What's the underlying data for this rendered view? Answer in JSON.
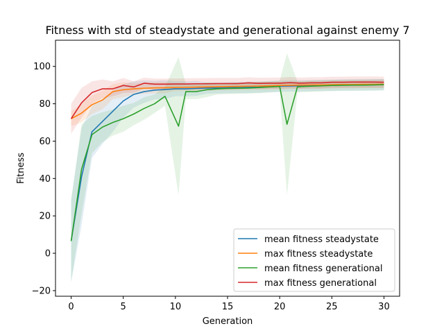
{
  "chart_data": {
    "type": "line",
    "title": "Fitness with std of steadystate and generational against enemy 7",
    "xlabel": "Generation",
    "ylabel": "Fitness",
    "xlim": [
      -1.5,
      31.5
    ],
    "ylim": [
      -23,
      114
    ],
    "xticks": [
      0,
      5,
      10,
      15,
      20,
      25,
      30
    ],
    "yticks": [
      -20,
      0,
      20,
      40,
      60,
      80,
      100
    ],
    "grid": false,
    "legend_position": "lower right",
    "series": [
      {
        "name": "mean fitness steadystate",
        "color": "#1f77b4",
        "x": [
          0,
          1,
          2,
          3,
          4,
          5,
          6,
          7,
          8,
          9,
          10,
          11,
          12,
          13,
          14,
          15,
          16,
          17,
          18,
          19,
          20,
          21,
          22,
          23,
          24,
          25,
          26,
          27,
          28,
          29,
          30
        ],
        "y": [
          6.5,
          41,
          65,
          70.5,
          76,
          81.5,
          85,
          86.5,
          87.3,
          87.6,
          88,
          88,
          88.2,
          88.4,
          88.5,
          88.6,
          88.7,
          88.8,
          88.9,
          89.2,
          89.4,
          89.5,
          89.6,
          89.7,
          89.8,
          89.9,
          90,
          90,
          90.1,
          90.1,
          90.2
        ],
        "std": [
          22,
          26,
          14,
          12,
          11,
          9,
          7,
          6,
          5,
          5,
          4,
          4,
          4,
          3,
          3,
          3,
          3,
          3,
          3,
          3,
          3,
          3,
          3,
          3,
          3,
          3,
          3,
          3,
          3,
          3,
          3
        ]
      },
      {
        "name": "max fitness steadystate",
        "color": "#ff7f0e",
        "x": [
          0,
          1,
          2,
          3,
          4,
          5,
          6,
          7,
          8,
          9,
          10,
          11,
          12,
          13,
          14,
          15,
          16,
          17,
          18,
          19,
          20,
          21,
          22,
          23,
          24,
          25,
          26,
          27,
          28,
          29,
          30
        ],
        "y": [
          72,
          75,
          79.5,
          82,
          86.5,
          87.5,
          88,
          88.3,
          88.5,
          88.6,
          88.7,
          88.8,
          88.9,
          89,
          89.1,
          89.2,
          89.3,
          89.4,
          89.5,
          89.6,
          89.8,
          89.9,
          90,
          90.1,
          90.1,
          90.2,
          90.3,
          90.3,
          90.4,
          90.4,
          90.5
        ],
        "std": [
          4,
          5,
          5,
          5,
          4,
          4,
          3,
          3,
          3,
          3,
          2,
          2,
          2,
          2,
          2,
          2,
          2,
          2,
          2,
          2,
          2,
          2,
          2,
          2,
          2,
          2,
          2,
          2,
          2,
          2,
          2
        ]
      },
      {
        "name": "mean fitness generational",
        "color": "#2ca02c",
        "x": [
          0,
          1,
          2,
          3,
          4,
          5,
          6,
          7,
          8,
          9,
          10.3,
          11,
          12,
          13,
          14,
          15,
          16,
          17,
          18,
          19,
          20,
          20.7,
          21.7,
          22,
          23,
          24,
          25,
          26,
          27,
          28,
          29,
          30
        ],
        "y": [
          6.5,
          45,
          63.5,
          67.5,
          70,
          72,
          74.5,
          77.5,
          80,
          84,
          68,
          86.5,
          86.5,
          87.5,
          88,
          88.2,
          88.3,
          88.4,
          88.7,
          89,
          89.3,
          69,
          89,
          89.2,
          89.4,
          89.6,
          89.8,
          89.9,
          90,
          90,
          90.1,
          90.2
        ],
        "std": [
          22,
          24,
          10,
          8,
          7,
          7,
          6,
          6,
          5,
          5,
          37,
          4,
          4,
          4,
          3,
          3,
          3,
          3,
          3,
          3,
          3,
          38,
          3,
          3,
          3,
          3,
          3,
          3,
          3,
          3,
          3,
          3
        ]
      },
      {
        "name": "max fitness generational",
        "color": "#d62728",
        "x": [
          0,
          1,
          2,
          3,
          4,
          5,
          6,
          7,
          8,
          9,
          10,
          11,
          12,
          13,
          14,
          15,
          16,
          17,
          18,
          19,
          20,
          21,
          22,
          23,
          24,
          25,
          26,
          27,
          28,
          29,
          30
        ],
        "y": [
          72,
          80.5,
          86,
          88,
          88,
          89.8,
          89,
          91,
          90.5,
          90.5,
          90.6,
          90.6,
          90.7,
          90.7,
          90.8,
          90.8,
          90.8,
          91.2,
          90.9,
          91,
          91,
          91.3,
          91,
          91.2,
          91.2,
          91.5,
          91.5,
          91.6,
          91.6,
          91.6,
          91.5
        ],
        "std": [
          8,
          8,
          6,
          5,
          4,
          4,
          3,
          3,
          3,
          3,
          3,
          3,
          3,
          3,
          3,
          3,
          3,
          3,
          3,
          3,
          3,
          3,
          3,
          3,
          3,
          3,
          3,
          3,
          3,
          3,
          3
        ]
      }
    ]
  }
}
